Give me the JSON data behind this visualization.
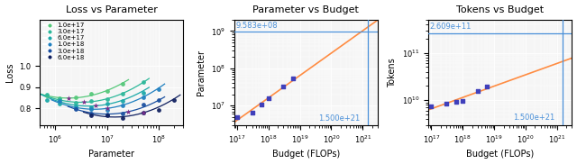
{
  "title1": "Loss vs Parameter",
  "title2": "Parameter vs Budget",
  "title3": "Tokens vs Budget",
  "xlabel1": "Parameter",
  "ylabel1": "Loss",
  "xlabel2": "Budget (FLOPs)",
  "ylabel2": "Parameter",
  "xlabel3": "Budget (FLOPs)",
  "ylabel3": "Tokens",
  "budgets": [
    1e+17,
    3e+17,
    6e+17,
    1e+18,
    3e+18,
    6e+18
  ],
  "budget_labels": [
    "1.0e+17",
    "3.0e+17",
    "6.0e+17",
    "1.0e+18",
    "3.0e+18",
    "6.0e+18"
  ],
  "colors": [
    "#55c87a",
    "#2db89a",
    "#1aa8a8",
    "#2080c0",
    "#1a4fa0",
    "#102060"
  ],
  "vline_x": 1.5e+21,
  "hline_y_param": 958300000.0,
  "hline_y_tokens": 260900000000.0,
  "vline_label": "1.500e+21",
  "hline_label_param": "9.583e+08",
  "hline_label_tokens": "2.609e+11",
  "budget_vs_param_x": [
    1e+17,
    3e+17,
    6e+17,
    1e+18,
    3e+18,
    6e+18
  ],
  "budget_vs_param_y": [
    5000000.0,
    6500000.0,
    10500000.0,
    15500000.0,
    32000000.0,
    52000000.0
  ],
  "budget_vs_tokens_y": [
    7500000000.0,
    8500000000.0,
    9200000000.0,
    9800000000.0,
    15500000000.0,
    19500000000.0
  ],
  "orange_line_color": "#ff8c42",
  "blue_line_color": "#4a90d9",
  "annot_color": "#4a90d9",
  "purple_marker_color": "#7b2d8b",
  "bg_color": "#f5f5f5"
}
